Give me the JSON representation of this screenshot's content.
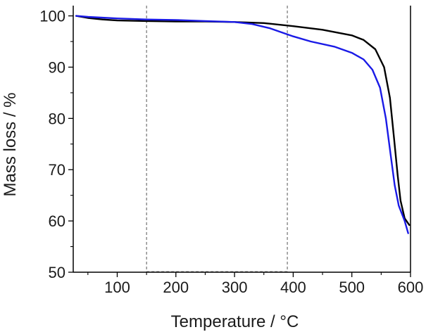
{
  "chart_data": {
    "type": "line",
    "title": "",
    "xlabel": "Temperature / °C",
    "ylabel": "Mass loss / %",
    "xlim": [
      25,
      600
    ],
    "ylim": [
      50,
      102
    ],
    "xticks": [
      100,
      200,
      300,
      400,
      500,
      600
    ],
    "yticks": [
      50,
      60,
      70,
      80,
      90,
      100
    ],
    "xminor_step": 50,
    "yminor_step": 5,
    "grid": false,
    "legend": "none",
    "reference_lines_x": [
      150,
      390
    ],
    "series": [
      {
        "name": "black",
        "color": "#000000",
        "points": [
          [
            30,
            100.0
          ],
          [
            50,
            99.6
          ],
          [
            75,
            99.3
          ],
          [
            100,
            99.1
          ],
          [
            150,
            99.0
          ],
          [
            200,
            98.9
          ],
          [
            250,
            98.9
          ],
          [
            300,
            98.8
          ],
          [
            350,
            98.6
          ],
          [
            400,
            98.0
          ],
          [
            450,
            97.3
          ],
          [
            500,
            96.2
          ],
          [
            520,
            95.3
          ],
          [
            540,
            93.5
          ],
          [
            555,
            90.0
          ],
          [
            565,
            84.0
          ],
          [
            572,
            76.0
          ],
          [
            578,
            69.0
          ],
          [
            583,
            64.0
          ],
          [
            590,
            60.5
          ],
          [
            598,
            59.2
          ]
        ]
      },
      {
        "name": "blue",
        "color": "#1a1ae6",
        "points": [
          [
            30,
            100.0
          ],
          [
            50,
            99.8
          ],
          [
            100,
            99.5
          ],
          [
            150,
            99.3
          ],
          [
            200,
            99.2
          ],
          [
            250,
            99.0
          ],
          [
            300,
            98.8
          ],
          [
            330,
            98.4
          ],
          [
            360,
            97.6
          ],
          [
            400,
            96.0
          ],
          [
            430,
            95.0
          ],
          [
            470,
            94.0
          ],
          [
            500,
            92.8
          ],
          [
            520,
            91.5
          ],
          [
            535,
            89.5
          ],
          [
            548,
            86.0
          ],
          [
            558,
            80.0
          ],
          [
            566,
            73.0
          ],
          [
            573,
            67.0
          ],
          [
            580,
            63.0
          ],
          [
            590,
            60.0
          ],
          [
            596,
            57.6
          ]
        ]
      }
    ]
  }
}
